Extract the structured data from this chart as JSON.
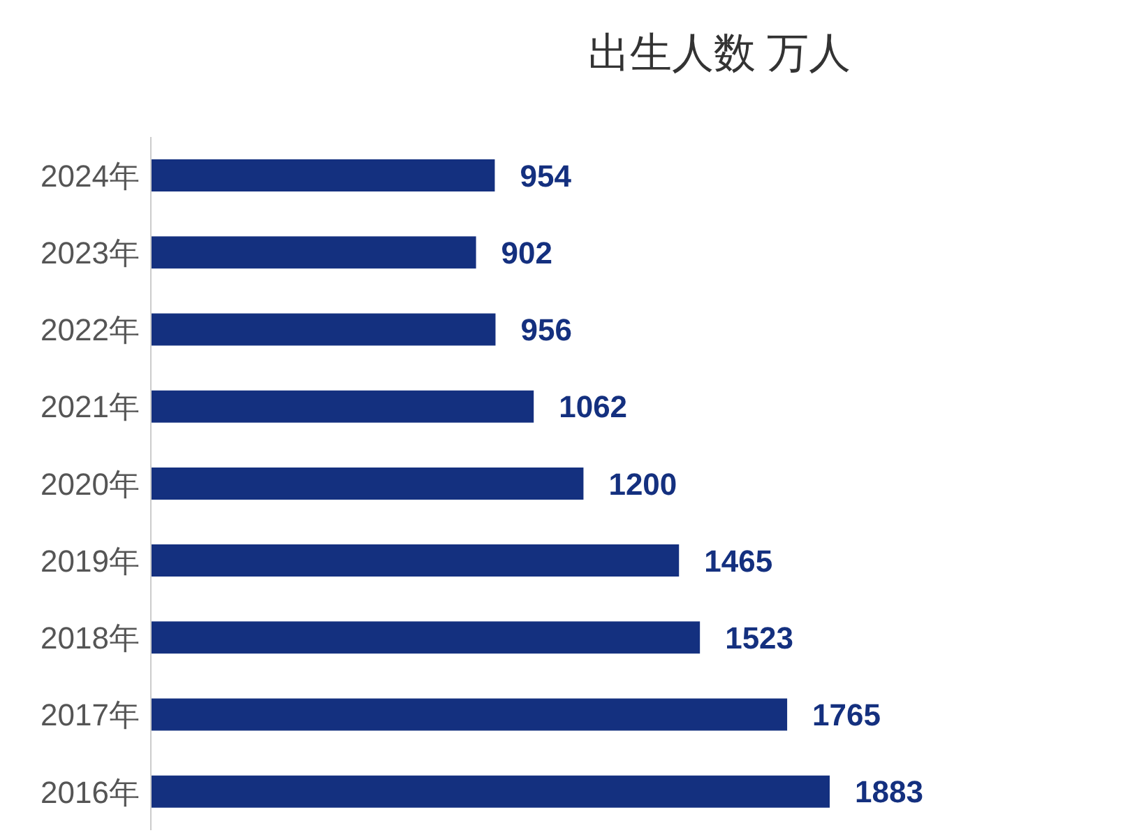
{
  "chart_data": {
    "type": "bar",
    "orientation": "horizontal",
    "title": "出生人数 万人",
    "categories": [
      "2024年",
      "2023年",
      "2022年",
      "2021年",
      "2020年",
      "2019年",
      "2018年",
      "2017年",
      "2016年"
    ],
    "values": [
      954,
      902,
      956,
      1062,
      1200,
      1465,
      1523,
      1765,
      1883
    ],
    "color": "#14307f",
    "data_labels": true
  }
}
